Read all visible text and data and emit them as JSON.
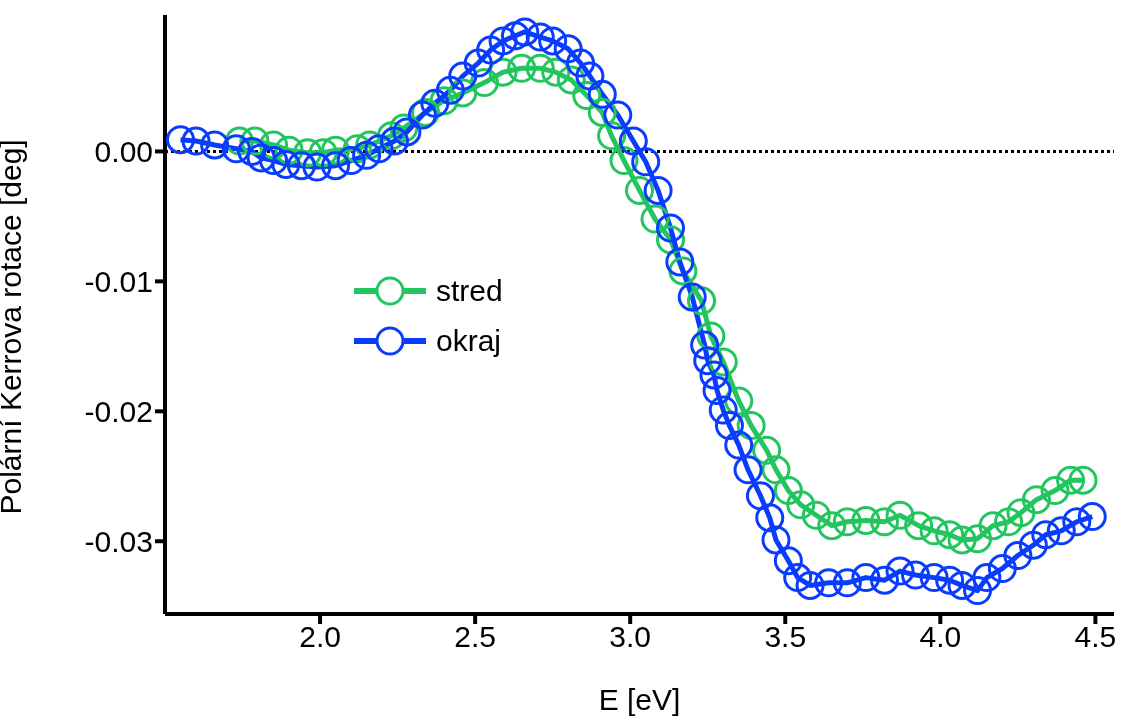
{
  "chart_data": {
    "type": "line",
    "xlabel": "E [eV]",
    "ylabel": "Polární Kerrova rotace [deg]",
    "xlim": [
      1.5,
      4.56
    ],
    "ylim": [
      -0.0356,
      0.0105
    ],
    "xticks": [
      {
        "value": 2.0,
        "label": "2.0"
      },
      {
        "value": 2.5,
        "label": "2.5"
      },
      {
        "value": 3.0,
        "label": "3.0"
      },
      {
        "value": 3.5,
        "label": "3.5"
      },
      {
        "value": 4.0,
        "label": "4.0"
      },
      {
        "value": 4.5,
        "label": "4.5"
      }
    ],
    "yticks": [
      {
        "value": 0,
        "label": "0.00"
      },
      {
        "value": -0.01,
        "label": "-0.01"
      },
      {
        "value": -0.02,
        "label": "-0.02"
      },
      {
        "value": -0.03,
        "label": "-0.03"
      }
    ],
    "grid": false,
    "legend": "left",
    "marker": "circle",
    "line_style": "solid",
    "ref_lines": [
      {
        "axis": "y",
        "value": 0,
        "color": "#000000",
        "line_style": "dotted"
      }
    ],
    "series": [
      {
        "name": "stred",
        "color": "#22c55e",
        "x": [
          1.74,
          1.79,
          1.85,
          1.9,
          1.96,
          2.01,
          2.05,
          2.12,
          2.16,
          2.23,
          2.27,
          2.34,
          2.4,
          2.46,
          2.53,
          2.59,
          2.65,
          2.71,
          2.76,
          2.81,
          2.86,
          2.91,
          2.94,
          2.98,
          3.03,
          3.08,
          3.13,
          3.17,
          3.23,
          3.26,
          3.3,
          3.35,
          3.39,
          3.44,
          3.47,
          3.51,
          3.55,
          3.6,
          3.65,
          3.7,
          3.76,
          3.82,
          3.87,
          3.93,
          3.98,
          4.03,
          4.07,
          4.12,
          4.17,
          4.22,
          4.26,
          4.31,
          4.37,
          4.42,
          4.46
        ],
        "values": [
          0.0008,
          0.0008,
          0.0005,
          0.0001,
          -0.0001,
          -0.0001,
          0.0001,
          0.0002,
          0.0005,
          0.0012,
          0.0018,
          0.003,
          0.0039,
          0.0045,
          0.0053,
          0.0061,
          0.0064,
          0.0064,
          0.0061,
          0.0055,
          0.0043,
          0.003,
          0.0012,
          -0.0007,
          -0.003,
          -0.0052,
          -0.0068,
          -0.0092,
          -0.0115,
          -0.0142,
          -0.0162,
          -0.0192,
          -0.0211,
          -0.023,
          -0.0245,
          -0.0261,
          -0.0272,
          -0.028,
          -0.0288,
          -0.0285,
          -0.0284,
          -0.0285,
          -0.028,
          -0.0288,
          -0.0292,
          -0.0295,
          -0.0299,
          -0.0298,
          -0.0288,
          -0.0285,
          -0.0278,
          -0.0268,
          -0.0261,
          -0.0253,
          -0.0253
        ]
      },
      {
        "name": "okraj",
        "color": "#0a3cff",
        "x": [
          1.55,
          1.6,
          1.66,
          1.73,
          1.78,
          1.81,
          1.85,
          1.89,
          1.94,
          1.99,
          2.05,
          2.1,
          2.15,
          2.19,
          2.24,
          2.28,
          2.33,
          2.37,
          2.42,
          2.46,
          2.51,
          2.55,
          2.59,
          2.63,
          2.66,
          2.71,
          2.75,
          2.8,
          2.84,
          2.87,
          2.91,
          2.96,
          3.01,
          3.05,
          3.09,
          3.13,
          3.16,
          3.2,
          3.24,
          3.25,
          3.27,
          3.28,
          3.3,
          3.32,
          3.35,
          3.38,
          3.42,
          3.45,
          3.47,
          3.51,
          3.54,
          3.58,
          3.64,
          3.7,
          3.76,
          3.82,
          3.87,
          3.92,
          3.98,
          4.03,
          4.07,
          4.12,
          4.15,
          4.2,
          4.25,
          4.3,
          4.34,
          4.39,
          4.44,
          4.49
        ],
        "values": [
          0.0009,
          0.0008,
          0.0005,
          0.0002,
          0.0,
          -0.0005,
          -0.0007,
          -0.001,
          -0.0011,
          -0.0012,
          -0.0011,
          -0.0007,
          -0.0003,
          0.0002,
          0.0008,
          0.0015,
          0.0028,
          0.0037,
          0.0047,
          0.0058,
          0.0068,
          0.0078,
          0.0085,
          0.0089,
          0.0092,
          0.0088,
          0.0085,
          0.0079,
          0.0068,
          0.0058,
          0.0044,
          0.0028,
          0.0008,
          -0.0008,
          -0.003,
          -0.0059,
          -0.0085,
          -0.0112,
          -0.0149,
          -0.0161,
          -0.0172,
          -0.0184,
          -0.0199,
          -0.0211,
          -0.0226,
          -0.0245,
          -0.0265,
          -0.0282,
          -0.0299,
          -0.0315,
          -0.0328,
          -0.0334,
          -0.0332,
          -0.0332,
          -0.0328,
          -0.033,
          -0.0323,
          -0.0326,
          -0.0328,
          -0.033,
          -0.0334,
          -0.0338,
          -0.0328,
          -0.0321,
          -0.0311,
          -0.0303,
          -0.0295,
          -0.0292,
          -0.0285,
          -0.0281
        ]
      }
    ]
  }
}
